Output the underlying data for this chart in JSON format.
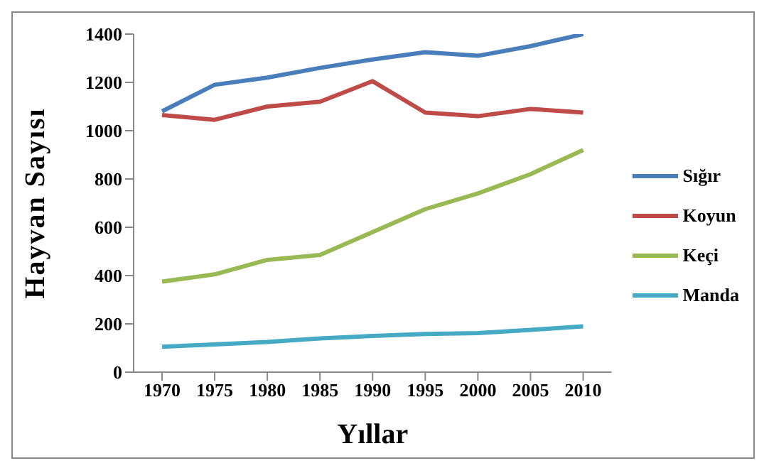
{
  "chart_data": {
    "type": "line",
    "xlabel": "Yıllar",
    "ylabel": "Hayvan Sayısı",
    "categories": [
      "1970",
      "1975",
      "1980",
      "1985",
      "1990",
      "1995",
      "2000",
      "2005",
      "2010"
    ],
    "series": [
      {
        "name": "Sığır",
        "color": "#4a7ebb",
        "values": [
          1080,
          1190,
          1220,
          1260,
          1295,
          1325,
          1310,
          1350,
          1400
        ]
      },
      {
        "name": "Koyun",
        "color": "#be4b48",
        "values": [
          1065,
          1045,
          1100,
          1120,
          1205,
          1075,
          1060,
          1090,
          1075
        ]
      },
      {
        "name": "Keçi",
        "color": "#98b954",
        "values": [
          375,
          405,
          465,
          485,
          580,
          675,
          740,
          820,
          920
        ]
      },
      {
        "name": "Manda",
        "color": "#46aac5",
        "values": [
          105,
          115,
          125,
          140,
          150,
          158,
          162,
          175,
          190
        ]
      }
    ],
    "ylim": [
      0,
      1400
    ],
    "yticks": [
      0,
      200,
      400,
      600,
      800,
      1000,
      1200,
      1400
    ],
    "grid": false,
    "legend": "right",
    "marker": "none",
    "line_style": "solid"
  }
}
